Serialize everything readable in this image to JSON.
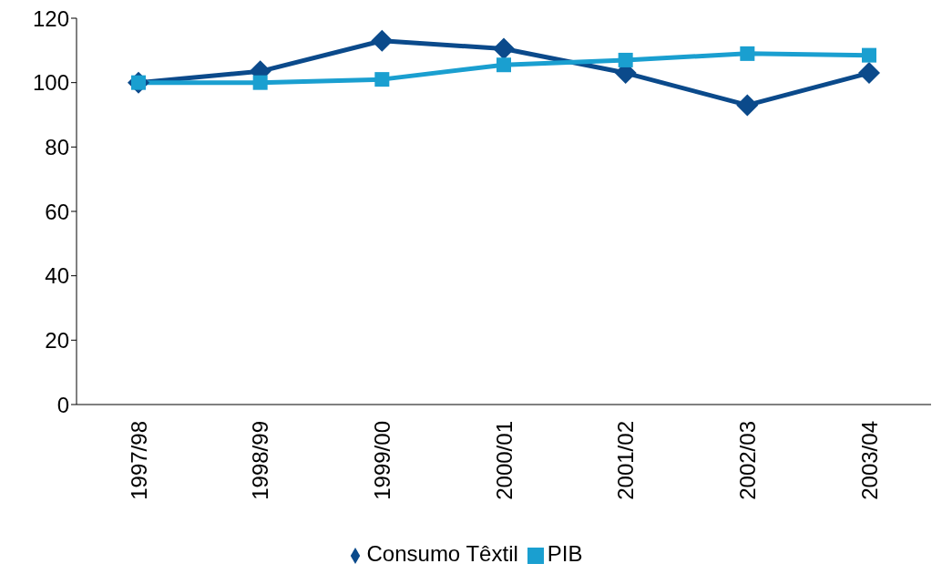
{
  "chart_data": {
    "type": "line",
    "categories": [
      "1997/98",
      "1998/99",
      "1999/00",
      "2000/01",
      "2001/02",
      "2002/03",
      "2003/04"
    ],
    "series": [
      {
        "name": "Consumo Têxtil",
        "color": "#0b4a8b",
        "marker": "diamond",
        "values": [
          100,
          103.5,
          113,
          110.5,
          103,
          93,
          103
        ]
      },
      {
        "name": "PIB",
        "color": "#1a9fd0",
        "marker": "square",
        "values": [
          100,
          100,
          101,
          105.5,
          107,
          109,
          108.5
        ]
      }
    ],
    "ylim": [
      0,
      120
    ],
    "yticks": [
      0,
      20,
      40,
      60,
      80,
      100,
      120
    ],
    "grid": false,
    "legend": "bottom"
  }
}
